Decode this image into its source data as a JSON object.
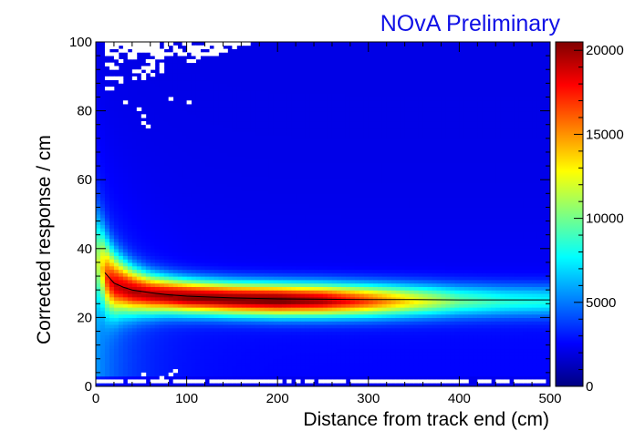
{
  "chart_data": {
    "type": "heatmap",
    "title": "",
    "annotation": "NOvA Preliminary",
    "annotation_color": "#1010e6",
    "xlabel": "Distance from track end (cm)",
    "ylabel": "Corrected response / cm",
    "xlim": [
      0,
      500
    ],
    "ylim": [
      0,
      100
    ],
    "zlim": [
      0,
      20500
    ],
    "x_ticks": [
      0,
      100,
      200,
      300,
      400,
      500
    ],
    "y_ticks": [
      0,
      20,
      40,
      60,
      80,
      100
    ],
    "z_ticks": [
      0,
      5000,
      10000,
      15000,
      20000
    ],
    "x_tick_labels": [
      "0",
      "100",
      "200",
      "300",
      "400",
      "500"
    ],
    "y_tick_labels": [
      "0",
      "20",
      "40",
      "60",
      "80",
      "100"
    ],
    "z_tick_labels": [
      "0",
      "5000",
      "10000",
      "15000",
      "20000"
    ],
    "grid": false,
    "colormap": "jet",
    "profile_line": {
      "x": [
        10,
        15,
        20,
        30,
        40,
        60,
        80,
        100,
        150,
        200,
        250,
        300,
        350,
        400,
        450,
        500
      ],
      "y": [
        33,
        31.5,
        30,
        28.8,
        28,
        27.2,
        26.6,
        26.2,
        25.7,
        25.4,
        25.3,
        25.2,
        25.2,
        25.1,
        25.1,
        25.1
      ]
    },
    "ridge": {
      "x": [
        5,
        10,
        20,
        40,
        60,
        100,
        150,
        200,
        250,
        300,
        350,
        400,
        450,
        500
      ],
      "center": [
        37,
        33,
        30,
        28,
        27,
        26.2,
        25.6,
        25.3,
        25.2,
        25.1,
        25.1,
        25.1,
        25.1,
        25.1
      ],
      "intensity": [
        6500,
        12000,
        15500,
        17000,
        17500,
        19000,
        19500,
        20000,
        18500,
        15000,
        11000,
        7500,
        6000,
        5500
      ]
    }
  }
}
